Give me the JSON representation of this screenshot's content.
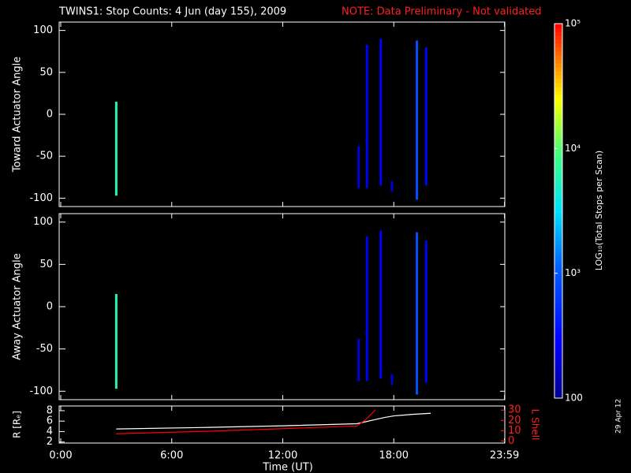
{
  "chart_data": {
    "type": "heatmap",
    "title": "TWINS1: Stop Counts:  4 Jun (day 155), 2009",
    "note": "NOTE: Data Preliminary - Not validated",
    "stamp": "29 Apr 12",
    "xlabel": "Time (UT)",
    "xlim": [
      0,
      24
    ],
    "xticks": [
      {
        "value": 0,
        "label": "0:00"
      },
      {
        "value": 6,
        "label": "6:00"
      },
      {
        "value": 12,
        "label": "12:00"
      },
      {
        "value": 18,
        "label": "18:00"
      },
      {
        "value": 23.983,
        "label": "23:59"
      }
    ],
    "colorbar": {
      "label": "LOG₁₀(Total Stops per Scan)",
      "lim": [
        100,
        100000
      ],
      "log": true,
      "ticks": [
        100,
        {
          "value": 1000,
          "label": "10³"
        },
        {
          "value": 10000,
          "label": "10⁴"
        },
        {
          "value": 100000,
          "label": "10⁵"
        }
      ]
    },
    "panels": [
      {
        "ylabel": "Toward Actuator Angle",
        "ylim": [
          -110,
          110
        ],
        "yticks": [
          -100,
          -50,
          0,
          50,
          100
        ],
        "streaks": [
          {
            "x": 3,
            "y_from": -97,
            "y_to": 15,
            "value": 6000
          },
          {
            "x": 16.1,
            "y_from": -88,
            "y_to": -38,
            "value": 200
          },
          {
            "x": 16.55,
            "y_from": -88,
            "y_to": 83,
            "value": 250
          },
          {
            "x": 17.3,
            "y_from": -85,
            "y_to": 90,
            "value": 300
          },
          {
            "x": 17.9,
            "y_from": -92,
            "y_to": -80,
            "value": 200
          },
          {
            "x": 19.25,
            "y_from": -102,
            "y_to": 88,
            "value": 900
          },
          {
            "x": 19.75,
            "y_from": -85,
            "y_to": 80,
            "value": 250
          }
        ]
      },
      {
        "ylabel": "Away Actuator Angle",
        "ylim": [
          -110,
          110
        ],
        "yticks": [
          -100,
          -50,
          0,
          50,
          100
        ],
        "streaks": [
          {
            "x": 3,
            "y_from": -97,
            "y_to": 15,
            "value": 6000
          },
          {
            "x": 16.1,
            "y_from": -88,
            "y_to": -38,
            "value": 200
          },
          {
            "x": 16.55,
            "y_from": -88,
            "y_to": 83,
            "value": 250
          },
          {
            "x": 17.3,
            "y_from": -85,
            "y_to": 90,
            "value": 300
          },
          {
            "x": 17.9,
            "y_from": -92,
            "y_to": -80,
            "value": 200
          },
          {
            "x": 19.25,
            "y_from": -104,
            "y_to": 88,
            "value": 900
          },
          {
            "x": 19.75,
            "y_from": -90,
            "y_to": 78,
            "value": 250
          }
        ]
      }
    ],
    "orbit": {
      "type": "line",
      "ylabel": "R [Rₑ]",
      "ylim": [
        1.8,
        8.9
      ],
      "yticks": [
        2,
        4,
        6,
        8
      ],
      "y2label": "L Shell",
      "y2lim": [
        -2,
        34
      ],
      "y2ticks": [
        0,
        10,
        20,
        30
      ],
      "x": [
        3,
        8,
        12,
        16,
        16.5,
        17,
        17.5,
        18,
        19,
        20
      ],
      "series": [
        {
          "name": "R",
          "color": "#ffffff",
          "values": [
            4.5,
            4.8,
            5.1,
            5.5,
            5.9,
            6.3,
            6.7,
            7.0,
            7.3,
            7.5
          ]
        },
        {
          "name": "L Shell",
          "color": "#ff0000",
          "axis": "y2",
          "values": [
            7,
            9.5,
            12,
            14.5,
            21,
            30,
            null,
            null,
            null,
            null
          ]
        }
      ]
    }
  }
}
